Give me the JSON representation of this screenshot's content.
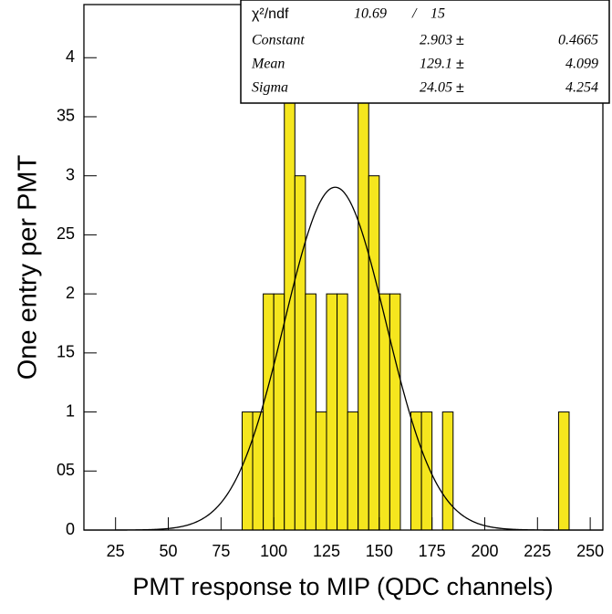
{
  "chart_data": {
    "type": "histogram",
    "x_label": "PMT response to MIP (QDC channels)",
    "y_label": "One entry per PMT",
    "bins": [
      85,
      90,
      95,
      100,
      105,
      110,
      115,
      120,
      125,
      130,
      135,
      140,
      145,
      150,
      155,
      160,
      165,
      170,
      175,
      180,
      185,
      190,
      195,
      200,
      205,
      210,
      215,
      220,
      225,
      230,
      235,
      240
    ],
    "counts": [
      1,
      1,
      2,
      2,
      4,
      3,
      2,
      1,
      2,
      2,
      1,
      4,
      3,
      2,
      2,
      0,
      1,
      1,
      0,
      1,
      0,
      0,
      0,
      0,
      0,
      0,
      0,
      0,
      0,
      0,
      1
    ],
    "color": "#f5e61e",
    "xlim": [
      10,
      256
    ],
    "ylim": [
      0,
      4.45
    ],
    "xticks": [
      25,
      50,
      75,
      100,
      125,
      150,
      175,
      200,
      225,
      250
    ],
    "yticks": [
      0,
      {
        "value": 0.5,
        "label": "05"
      },
      1,
      {
        "value": 1.5,
        "label": "15"
      },
      2,
      {
        "value": 2.5,
        "label": "25"
      },
      3,
      {
        "value": 3.5,
        "label": "35"
      },
      4
    ],
    "fit": {
      "chi2_label": "χ²/ndf",
      "chi2": 10.69,
      "separator": "/",
      "ndf": 15,
      "pm": "±",
      "params": [
        {
          "name": "Constant",
          "value": 2.903,
          "error": 0.4665
        },
        {
          "name": "Mean",
          "value": 129.1,
          "error": 4.099
        },
        {
          "name": "Sigma",
          "value": 24.05,
          "error": 4.254
        }
      ]
    }
  }
}
